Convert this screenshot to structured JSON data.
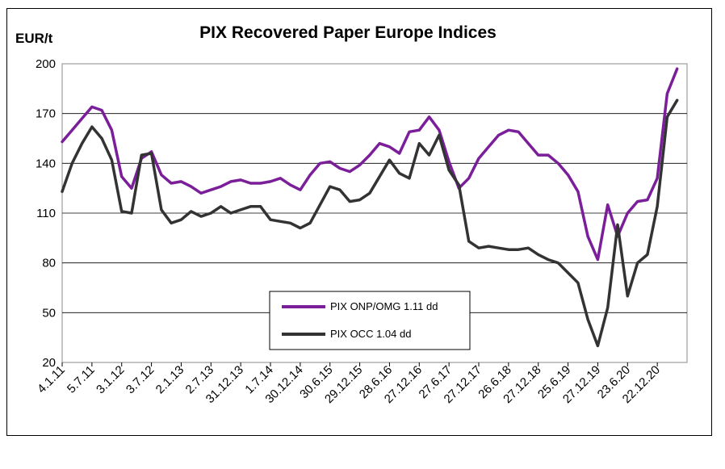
{
  "chart_data": {
    "type": "line",
    "title": "PIX Recovered Paper Europe Indices",
    "ylabel": "EUR/t",
    "xlabel": "",
    "ylim": [
      20,
      200
    ],
    "yticks": [
      20,
      50,
      80,
      110,
      140,
      170,
      200
    ],
    "grid": "horizontal",
    "legend_position": "lower-center",
    "x_tick_labels": [
      "4.1.11",
      "5.7.11",
      "3.1.12",
      "3.7.12",
      "2.1.13",
      "2.7.13",
      "31.12.13",
      "1.7.14",
      "30.12.14",
      "30.6.15",
      "29.12.15",
      "28.6.16",
      "27.12.16",
      "27.6.17",
      "27.12.17",
      "26.6.18",
      "27.12.18",
      "25.6.19",
      "27.12.19",
      "23.6.20",
      "22.12.20"
    ],
    "x": [
      "2011-01",
      "2011-03",
      "2011-05",
      "2011-07",
      "2011-09",
      "2011-11",
      "2012-01",
      "2012-03",
      "2012-05",
      "2012-07",
      "2012-09",
      "2012-11",
      "2013-01",
      "2013-03",
      "2013-05",
      "2013-07",
      "2013-09",
      "2013-11",
      "2014-01",
      "2014-03",
      "2014-05",
      "2014-07",
      "2014-09",
      "2014-11",
      "2015-01",
      "2015-03",
      "2015-05",
      "2015-07",
      "2015-09",
      "2015-11",
      "2016-01",
      "2016-03",
      "2016-05",
      "2016-07",
      "2016-09",
      "2016-11",
      "2017-01",
      "2017-03",
      "2017-05",
      "2017-07",
      "2017-09",
      "2017-11",
      "2018-01",
      "2018-03",
      "2018-05",
      "2018-07",
      "2018-09",
      "2018-11",
      "2019-01",
      "2019-03",
      "2019-05",
      "2019-07",
      "2019-09",
      "2019-11",
      "2020-01",
      "2020-03",
      "2020-05",
      "2020-07",
      "2020-09",
      "2020-11",
      "2021-01",
      "2021-03",
      "2021-05"
    ],
    "series": [
      {
        "name": "PIX ONP/OMG 1.11 dd",
        "color": "#7a1f99",
        "values": [
          153,
          160,
          167,
          174,
          172,
          160,
          132,
          125,
          143,
          147,
          133,
          128,
          129,
          126,
          122,
          124,
          126,
          129,
          130,
          128,
          128,
          129,
          131,
          127,
          124,
          133,
          140,
          141,
          137,
          135,
          139,
          145,
          152,
          150,
          146,
          159,
          160,
          168,
          160,
          141,
          125,
          131,
          143,
          150,
          157,
          160,
          159,
          152,
          145,
          145,
          140,
          133,
          123,
          96,
          82,
          115,
          96,
          110,
          117,
          118,
          131,
          182,
          197
        ]
      },
      {
        "name": "PIX OCC 1.04 dd",
        "color": "#333333",
        "values": [
          123,
          140,
          152,
          162,
          155,
          142,
          111,
          110,
          145,
          146,
          112,
          104,
          106,
          111,
          108,
          110,
          114,
          110,
          112,
          114,
          114,
          106,
          105,
          104,
          101,
          104,
          115,
          126,
          124,
          117,
          118,
          122,
          132,
          142,
          134,
          131,
          152,
          145,
          157,
          136,
          127,
          93,
          89,
          90,
          89,
          88,
          88,
          89,
          85,
          82,
          80,
          74,
          68,
          46,
          30,
          53,
          103,
          60,
          80,
          85,
          114,
          168,
          178
        ]
      }
    ]
  }
}
